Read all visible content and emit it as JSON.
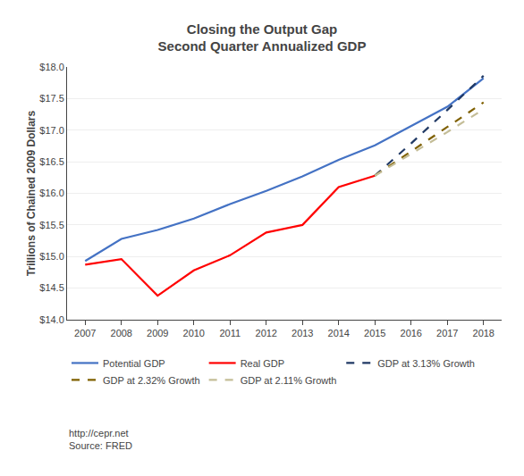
{
  "chart_data": {
    "type": "line",
    "title": "Closing the Output Gap",
    "subtitle": "Second Quarter Annualized GDP",
    "ylabel": "Trillions of Chained 2009 Dollars",
    "annotations": [
      "http://cepr.net\nSource: FRED"
    ],
    "series": [
      {
        "name": "Potential GDP",
        "color": "#4472C4",
        "line_style": "solid",
        "x": [
          2007,
          2008,
          2009,
          2010,
          2011,
          2012,
          2013,
          2014,
          2015,
          2016,
          2017,
          2018
        ],
        "values": [
          14.93,
          15.28,
          15.42,
          15.6,
          15.83,
          16.04,
          16.27,
          16.53,
          16.76,
          17.07,
          17.37,
          17.82
        ]
      },
      {
        "name": "Real GDP",
        "color": "#FF0000",
        "line_style": "solid",
        "x": [
          2007,
          2008,
          2009,
          2010,
          2011,
          2012,
          2013,
          2014,
          2015
        ],
        "values": [
          14.87,
          14.96,
          14.38,
          14.78,
          15.02,
          15.38,
          15.5,
          16.1,
          16.28
        ]
      },
      {
        "name": "GDP at 3.13% Growth",
        "color": "#1F3864",
        "line_style": "dashed",
        "x": [
          2015,
          2016,
          2017,
          2018
        ],
        "values": [
          16.28,
          16.79,
          17.32,
          17.86
        ]
      },
      {
        "name": "GDP at 2.32% Growth",
        "color": "#7F6000",
        "line_style": "dashed",
        "x": [
          2015,
          2016,
          2017,
          2018
        ],
        "values": [
          16.28,
          16.66,
          17.05,
          17.44
        ]
      },
      {
        "name": "GDP at 2.11% Growth",
        "color": "#C4BD97",
        "line_style": "dashed",
        "x": [
          2015,
          2016,
          2017,
          2018
        ],
        "values": [
          16.28,
          16.62,
          16.97,
          17.33
        ]
      }
    ],
    "xlim": [
      2006.5,
      2018.5
    ],
    "xticks": [
      2007,
      2008,
      2009,
      2010,
      2011,
      2012,
      2013,
      2014,
      2015,
      2016,
      2017,
      2018
    ],
    "ylim": [
      14.0,
      18.0
    ],
    "yticks": [
      {
        "value": 14.0,
        "label": "$14.0"
      },
      {
        "value": 14.5,
        "label": "$14.5"
      },
      {
        "value": 15.0,
        "label": "$15.0"
      },
      {
        "value": 15.5,
        "label": "$15.5"
      },
      {
        "value": 16.0,
        "label": "$16.0"
      },
      {
        "value": 16.5,
        "label": "$16.5"
      },
      {
        "value": 17.0,
        "label": "$17.0"
      },
      {
        "value": 17.5,
        "label": "$17.5"
      },
      {
        "value": 18.0,
        "label": "$18.0"
      }
    ],
    "grid": "y",
    "legend": "bottom"
  }
}
